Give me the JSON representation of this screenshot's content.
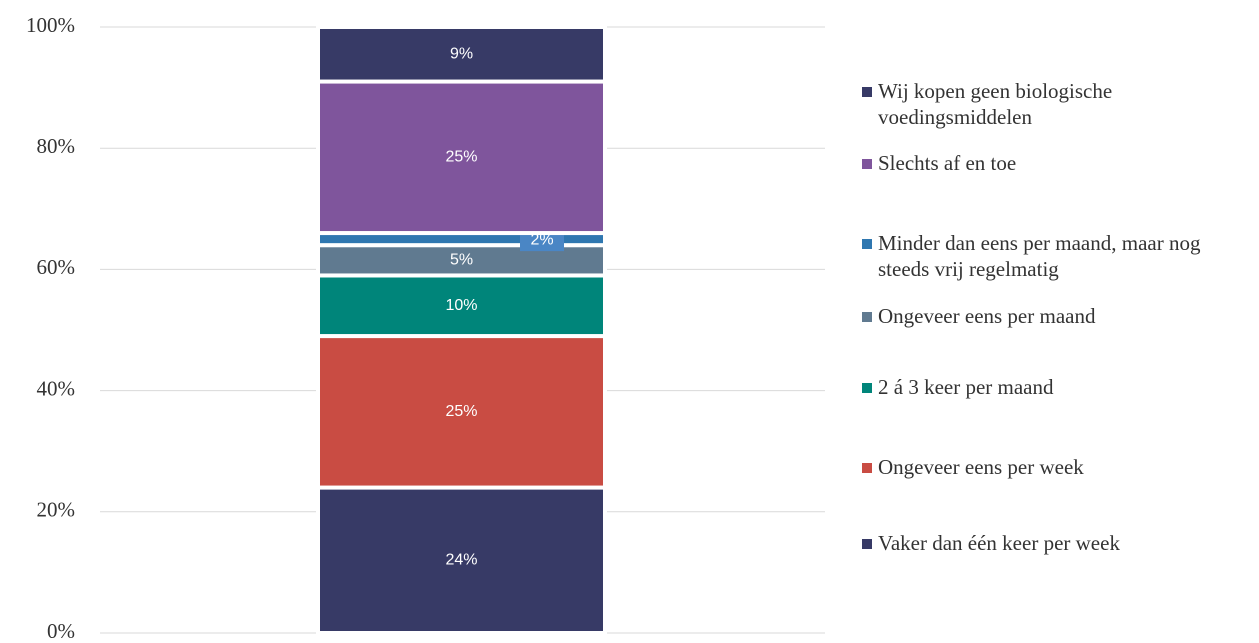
{
  "chart_data": {
    "type": "stacked-bar",
    "categories": [
      null
    ],
    "series": [
      {
        "name": "Vaker dan één keer per week",
        "color": "#373a66",
        "values": [
          24
        ],
        "value_labels": [
          "24%"
        ]
      },
      {
        "name": "Ongeveer eens per week",
        "color": "#c94c43",
        "values": [
          25
        ],
        "value_labels": [
          "25%"
        ]
      },
      {
        "name": "2 á 3 keer per maand",
        "color": "#00857a",
        "values": [
          10
        ],
        "value_labels": [
          "10%"
        ]
      },
      {
        "name": "Ongeveer eens per maand",
        "color": "#607a90",
        "values": [
          5
        ],
        "value_labels": [
          "5%"
        ]
      },
      {
        "name": "Minder dan eens per maand, maar nog steeds vrij regelmatig",
        "color": "#2f77b0",
        "values": [
          2
        ],
        "value_labels": [
          "2%"
        ]
      },
      {
        "name": "Slechts af en toe",
        "color": "#7f559c",
        "values": [
          25
        ],
        "value_labels": [
          "25%"
        ]
      },
      {
        "name": "Wij kopen geen biologische voedingsmiddelen",
        "color": "#373a66",
        "values": [
          9
        ],
        "value_labels": [
          "9%"
        ]
      }
    ],
    "ylim": [
      0,
      100
    ],
    "yticks": [
      {
        "value": 0,
        "label": "0%"
      },
      {
        "value": 20,
        "label": "20%"
      },
      {
        "value": 40,
        "label": "40%"
      },
      {
        "value": 60,
        "label": "60%"
      },
      {
        "value": 80,
        "label": "80%"
      },
      {
        "value": 100,
        "label": "100%"
      }
    ],
    "grid": true,
    "legend": "right"
  }
}
